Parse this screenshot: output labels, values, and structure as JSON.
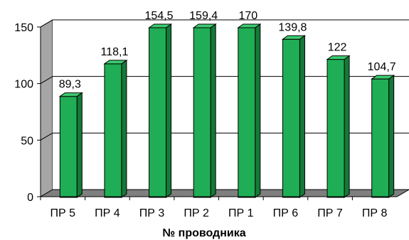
{
  "chart_data": {
    "type": "bar",
    "categories": [
      "ПР 5",
      "ПР 4",
      "ПР 3",
      "ПР 2",
      "ПР 1",
      "ПР 6",
      "ПР 7",
      "ПР 8"
    ],
    "values": [
      89.3,
      118.1,
      154.5,
      159.4,
      170,
      139.8,
      122,
      104.7
    ],
    "value_labels": [
      "89,3",
      "118,1",
      "154,5",
      "159,4",
      "170",
      "139,8",
      "122",
      "104,7"
    ],
    "bar_heights_axis": [
      89.3,
      118.1,
      150,
      150,
      150,
      139.8,
      122,
      104.7
    ],
    "xlabel": "№ проводника",
    "ylabel": "",
    "ylim": [
      0,
      150
    ],
    "yticks": [
      "0",
      "50",
      "100",
      "150"
    ],
    "grid": true,
    "style": "3d-column",
    "colors": {
      "bar_front": "#1fae55",
      "bar_side": "#137a37",
      "bar_top": "#3ccc70",
      "side_wall": "#a6a6a6",
      "floor": "#7f7f7f"
    }
  }
}
